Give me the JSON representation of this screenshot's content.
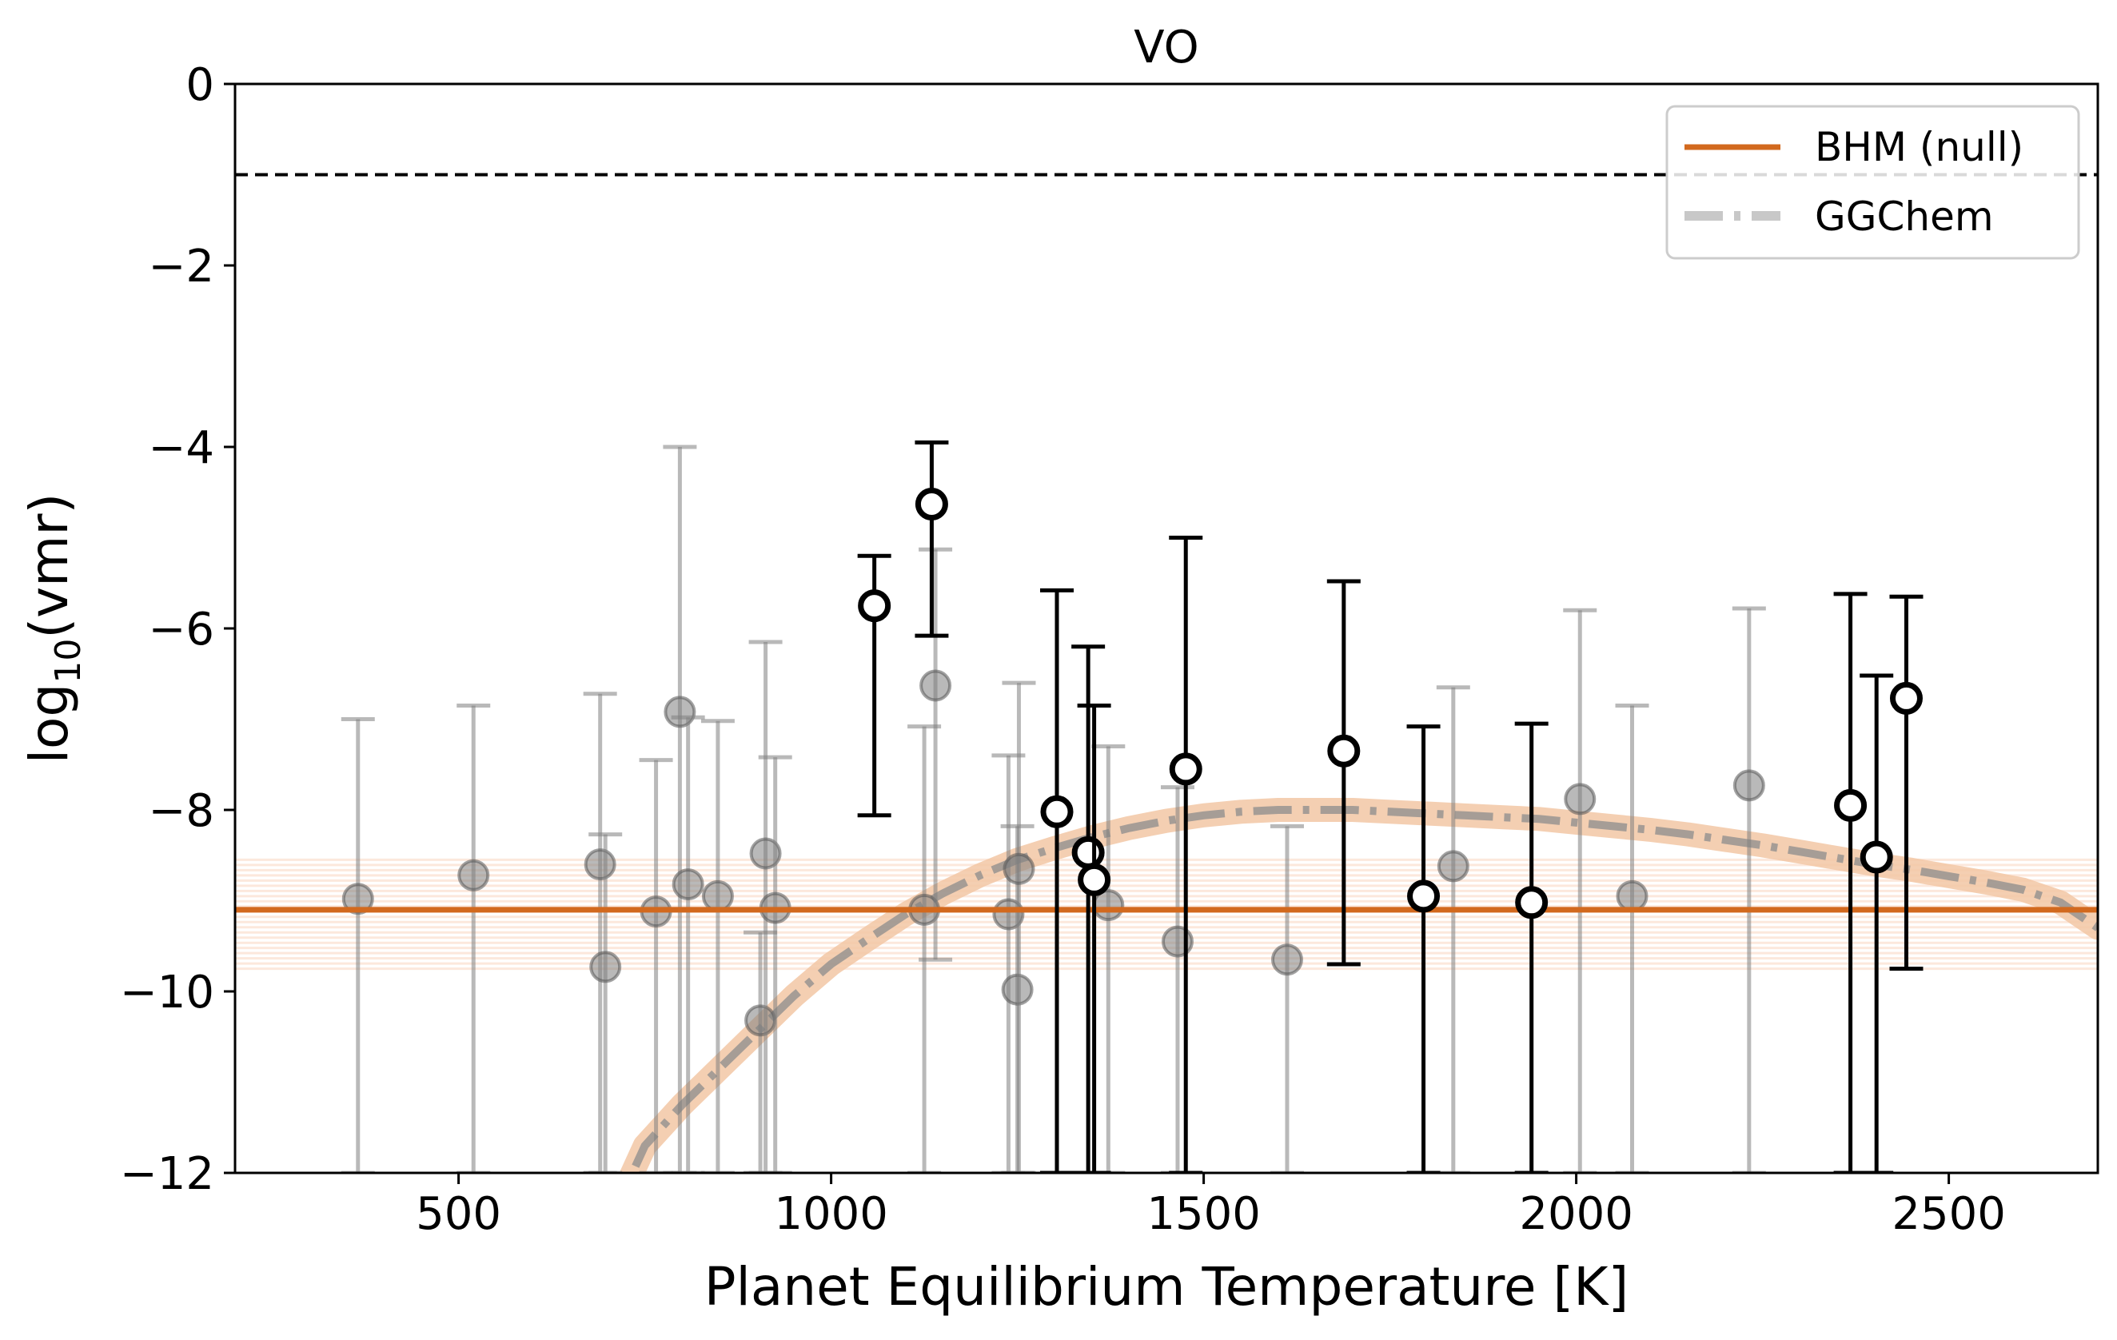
{
  "chart_data": {
    "type": "scatter",
    "title": "VO",
    "xlabel": "Planet Equilibrium Temperature [K]",
    "ylabel_base": "log",
    "ylabel_sub": "10",
    "ylabel_rest": "(vmr)",
    "xlim": [
      200,
      2700
    ],
    "ylim": [
      -12,
      0
    ],
    "xticks": [
      500,
      1000,
      1500,
      2000,
      2500
    ],
    "xtick_labels": [
      "500",
      "1000",
      "1500",
      "2000",
      "2500"
    ],
    "yticks": [
      0,
      -2,
      -4,
      -6,
      -8,
      -10,
      -12
    ],
    "ytick_labels": [
      "0",
      "−2",
      "−4",
      "−6",
      "−8",
      "−10",
      "−12"
    ],
    "grid": false,
    "legend_placement": "top-right",
    "legend": [
      {
        "label": "BHM (null)",
        "style": "solid",
        "color": "#d2691e"
      },
      {
        "label": "GGChem",
        "style": "dashdot",
        "color": "#c8c8c8"
      }
    ],
    "colors": {
      "bhm": "#d2691e",
      "bhm_band": "#f4b48a",
      "ggchem_band": "#f2c7a4",
      "gray_points": "#808080",
      "detections": "#000000"
    },
    "reference_line": {
      "y": -1,
      "style": "dashed",
      "color": "#000000"
    },
    "bhm_null": {
      "y": -9.1,
      "band": [
        -9.75,
        -8.55
      ]
    },
    "ggchem_curve": {
      "x": [
        700,
        750,
        800,
        850,
        900,
        950,
        1000,
        1050,
        1100,
        1150,
        1200,
        1250,
        1300,
        1350,
        1400,
        1450,
        1500,
        1550,
        1600,
        1650,
        1700,
        1750,
        1800,
        1850,
        1900,
        1950,
        2000,
        2050,
        2100,
        2150,
        2200,
        2250,
        2300,
        2350,
        2400,
        2450,
        2500,
        2550,
        2600,
        2650,
        2700
      ],
      "y": [
        -12.6,
        -11.7,
        -11.25,
        -10.85,
        -10.45,
        -10.05,
        -9.7,
        -9.42,
        -9.15,
        -8.92,
        -8.72,
        -8.55,
        -8.42,
        -8.3,
        -8.2,
        -8.12,
        -8.06,
        -8.02,
        -8.0,
        -8.0,
        -8.0,
        -8.02,
        -8.04,
        -8.06,
        -8.08,
        -8.1,
        -8.14,
        -8.18,
        -8.22,
        -8.27,
        -8.33,
        -8.39,
        -8.46,
        -8.53,
        -8.6,
        -8.66,
        -8.73,
        -8.8,
        -8.88,
        -9.02,
        -9.3
      ]
    },
    "series": [
      {
        "name": "",
        "style": "gray",
        "points": [
          {
            "x": 365,
            "y": -8.98,
            "lo": -12.0,
            "hi": -7.0
          },
          {
            "x": 520,
            "y": -8.72,
            "lo": -12.0,
            "hi": -6.85
          },
          {
            "x": 690,
            "y": -8.6,
            "lo": -12.0,
            "hi": -6.72
          },
          {
            "x": 697,
            "y": -9.73,
            "lo": -12.0,
            "hi": -8.27
          },
          {
            "x": 765,
            "y": -9.12,
            "lo": -12.0,
            "hi": -7.45
          },
          {
            "x": 797,
            "y": -6.92,
            "lo": -12.0,
            "hi": -4.0
          },
          {
            "x": 808,
            "y": -8.82,
            "lo": -12.0,
            "hi": -6.98
          },
          {
            "x": 848,
            "y": -8.95,
            "lo": -12.0,
            "hi": -7.02
          },
          {
            "x": 905,
            "y": -10.32,
            "lo": -12.0,
            "hi": -9.35
          },
          {
            "x": 912,
            "y": -8.48,
            "lo": -12.0,
            "hi": -6.15
          },
          {
            "x": 925,
            "y": -9.08,
            "lo": -12.0,
            "hi": -7.42
          },
          {
            "x": 1125,
            "y": -9.1,
            "lo": -12.0,
            "hi": -7.08
          },
          {
            "x": 1140,
            "y": -6.63,
            "lo": -9.65,
            "hi": -5.13
          },
          {
            "x": 1238,
            "y": -9.15,
            "lo": -12.0,
            "hi": -7.4
          },
          {
            "x": 1250,
            "y": -9.98,
            "lo": -12.0,
            "hi": -8.18
          },
          {
            "x": 1252,
            "y": -8.65,
            "lo": -12.0,
            "hi": -6.6
          },
          {
            "x": 1372,
            "y": -9.05,
            "lo": -12.0,
            "hi": -7.3
          },
          {
            "x": 1465,
            "y": -9.45,
            "lo": -12.0,
            "hi": -7.75
          },
          {
            "x": 1612,
            "y": -9.65,
            "lo": -12.0,
            "hi": -8.18
          },
          {
            "x": 1835,
            "y": -8.62,
            "lo": -12.0,
            "hi": -6.65
          },
          {
            "x": 2005,
            "y": -7.88,
            "lo": -12.0,
            "hi": -5.8
          },
          {
            "x": 2075,
            "y": -8.95,
            "lo": -12.0,
            "hi": -6.85
          },
          {
            "x": 2232,
            "y": -7.73,
            "lo": -12.0,
            "hi": -5.78
          }
        ]
      },
      {
        "name": "",
        "style": "detection",
        "points": [
          {
            "x": 1058,
            "y": -5.75,
            "lo": -8.06,
            "hi": -5.2
          },
          {
            "x": 1135,
            "y": -4.63,
            "lo": -6.08,
            "hi": -3.95
          },
          {
            "x": 1303,
            "y": -8.02,
            "lo": -12.0,
            "hi": -5.58
          },
          {
            "x": 1345,
            "y": -8.47,
            "lo": -12.0,
            "hi": -6.2
          },
          {
            "x": 1353,
            "y": -8.77,
            "lo": -12.0,
            "hi": -6.85
          },
          {
            "x": 1476,
            "y": -7.55,
            "lo": -12.0,
            "hi": -5.0
          },
          {
            "x": 1688,
            "y": -7.35,
            "lo": -9.7,
            "hi": -5.48
          },
          {
            "x": 1795,
            "y": -8.95,
            "lo": -12.0,
            "hi": -7.08
          },
          {
            "x": 1940,
            "y": -9.02,
            "lo": -12.0,
            "hi": -7.05
          },
          {
            "x": 2368,
            "y": -7.95,
            "lo": -12.0,
            "hi": -5.62
          },
          {
            "x": 2403,
            "y": -8.52,
            "lo": -12.0,
            "hi": -6.52
          },
          {
            "x": 2443,
            "y": -6.77,
            "lo": -9.75,
            "hi": -5.65
          }
        ]
      }
    ]
  }
}
